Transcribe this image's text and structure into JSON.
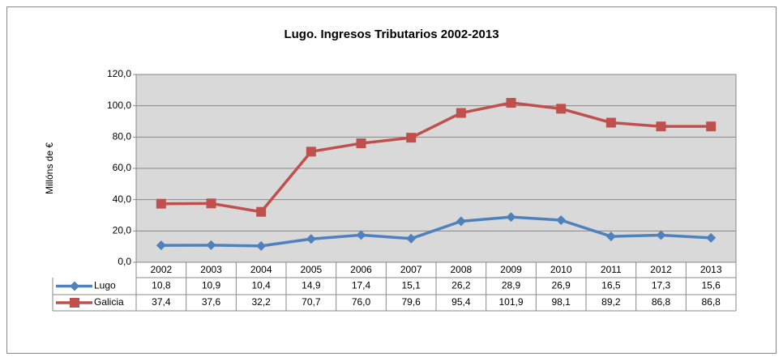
{
  "chart_data": {
    "type": "line",
    "title": "Lugo. Ingresos Tributarios 2002-2013",
    "y_label": "Millóns de €",
    "categories": [
      "2002",
      "2003",
      "2004",
      "2005",
      "2006",
      "2007",
      "2008",
      "2009",
      "2010",
      "2011",
      "2012",
      "2013"
    ],
    "series": [
      {
        "name": "Lugo",
        "color": "#4f81bd",
        "marker": "diamond",
        "values": [
          10.8,
          10.9,
          10.4,
          14.9,
          17.4,
          15.1,
          26.2,
          28.9,
          26.9,
          16.5,
          17.3,
          15.6
        ],
        "value_labels": [
          "10,8",
          "10,9",
          "10,4",
          "14,9",
          "17,4",
          "15,1",
          "26,2",
          "28,9",
          "26,9",
          "16,5",
          "17,3",
          "15,6"
        ]
      },
      {
        "name": "Galicia",
        "color": "#c0504d",
        "marker": "square",
        "values": [
          37.4,
          37.6,
          32.2,
          70.7,
          76.0,
          79.6,
          95.4,
          101.9,
          98.1,
          89.2,
          86.8,
          86.8
        ],
        "value_labels": [
          "37,4",
          "37,6",
          "32,2",
          "70,7",
          "76,0",
          "79,6",
          "95,4",
          "101,9",
          "98,1",
          "89,2",
          "86,8",
          "86,8"
        ]
      }
    ],
    "ylim": [
      0,
      120
    ],
    "yticks": [
      {
        "value": 0,
        "label": "0,0"
      },
      {
        "value": 20,
        "label": "20,0"
      },
      {
        "value": 40,
        "label": "40,0"
      },
      {
        "value": 60,
        "label": "60,0"
      },
      {
        "value": 80,
        "label": "80,0"
      },
      {
        "value": 100,
        "label": "100,0"
      },
      {
        "value": 120,
        "label": "120,0"
      }
    ],
    "grid": true
  }
}
